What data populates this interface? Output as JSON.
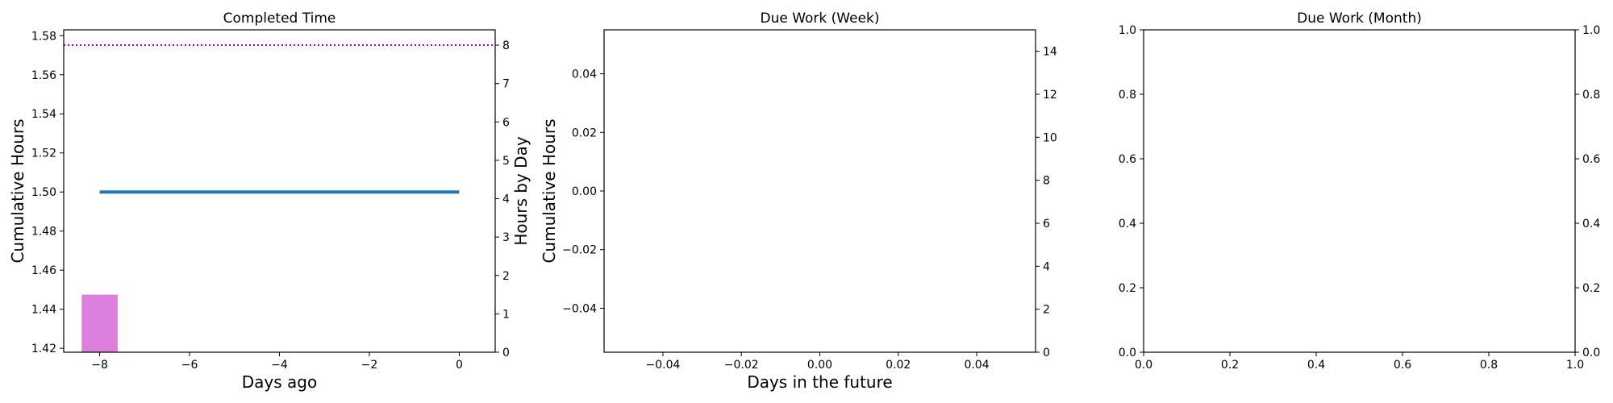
{
  "chart_data": [
    {
      "type": "bar",
      "title": "Completed Time",
      "xlabel": "Days ago",
      "ylabel": "Cumulative Hours",
      "ylabel_right": "Hours by Day",
      "xlim": [
        -8.8,
        0.8
      ],
      "ylim": [
        1.418,
        1.583
      ],
      "ylim_right": [
        0,
        8.4
      ],
      "x_ticks": [
        -8,
        -6,
        -4,
        -2,
        0
      ],
      "y_ticks": [
        1.42,
        1.44,
        1.46,
        1.48,
        1.5,
        1.52,
        1.54,
        1.56,
        1.58
      ],
      "y_ticks_right": [
        0,
        1,
        2,
        3,
        4,
        5,
        6,
        7,
        8
      ],
      "cumulative_line": {
        "x": [
          -8,
          0
        ],
        "y": [
          1.5,
          1.5
        ],
        "color": "#1f77b4"
      },
      "daily_bars": {
        "x": [
          -8
        ],
        "values": [
          1.5
        ],
        "width": 0.8,
        "color": "#dd80dd"
      },
      "target_line": {
        "y_right": 8,
        "color": "#aa00aa",
        "style": "dotted"
      }
    },
    {
      "type": "line",
      "title": "Due Work (Week)",
      "xlabel": "Days in the future",
      "ylabel": "Cumulative Hours",
      "xlim": [
        -0.055,
        0.055
      ],
      "ylim": [
        -0.055,
        0.055
      ],
      "ylim_right": [
        0,
        15
      ],
      "x_ticks": [
        "−0.04",
        "−0.02",
        "0.00",
        "0.02",
        "0.04"
      ],
      "y_ticks": [
        "−0.04",
        "−0.02",
        "0.00",
        "0.02",
        "0.04"
      ],
      "y_ticks_right": [
        "0",
        "2",
        "4",
        "6",
        "8",
        "10",
        "12",
        "14"
      ],
      "series": []
    },
    {
      "type": "line",
      "title": "Due Work (Month)",
      "xlabel": "",
      "ylabel": "",
      "xlim": [
        0,
        1
      ],
      "ylim": [
        0,
        1
      ],
      "ylim_right": [
        0,
        1
      ],
      "x_ticks": [
        "0.0",
        "0.2",
        "0.4",
        "0.6",
        "0.8",
        "1.0"
      ],
      "y_ticks": [
        "0.0",
        "0.2",
        "0.4",
        "0.6",
        "0.8",
        "1.0"
      ],
      "y_ticks_right": [
        "0.0",
        "0.2",
        "0.4",
        "0.6",
        "0.8",
        "1.0"
      ],
      "series": []
    }
  ]
}
